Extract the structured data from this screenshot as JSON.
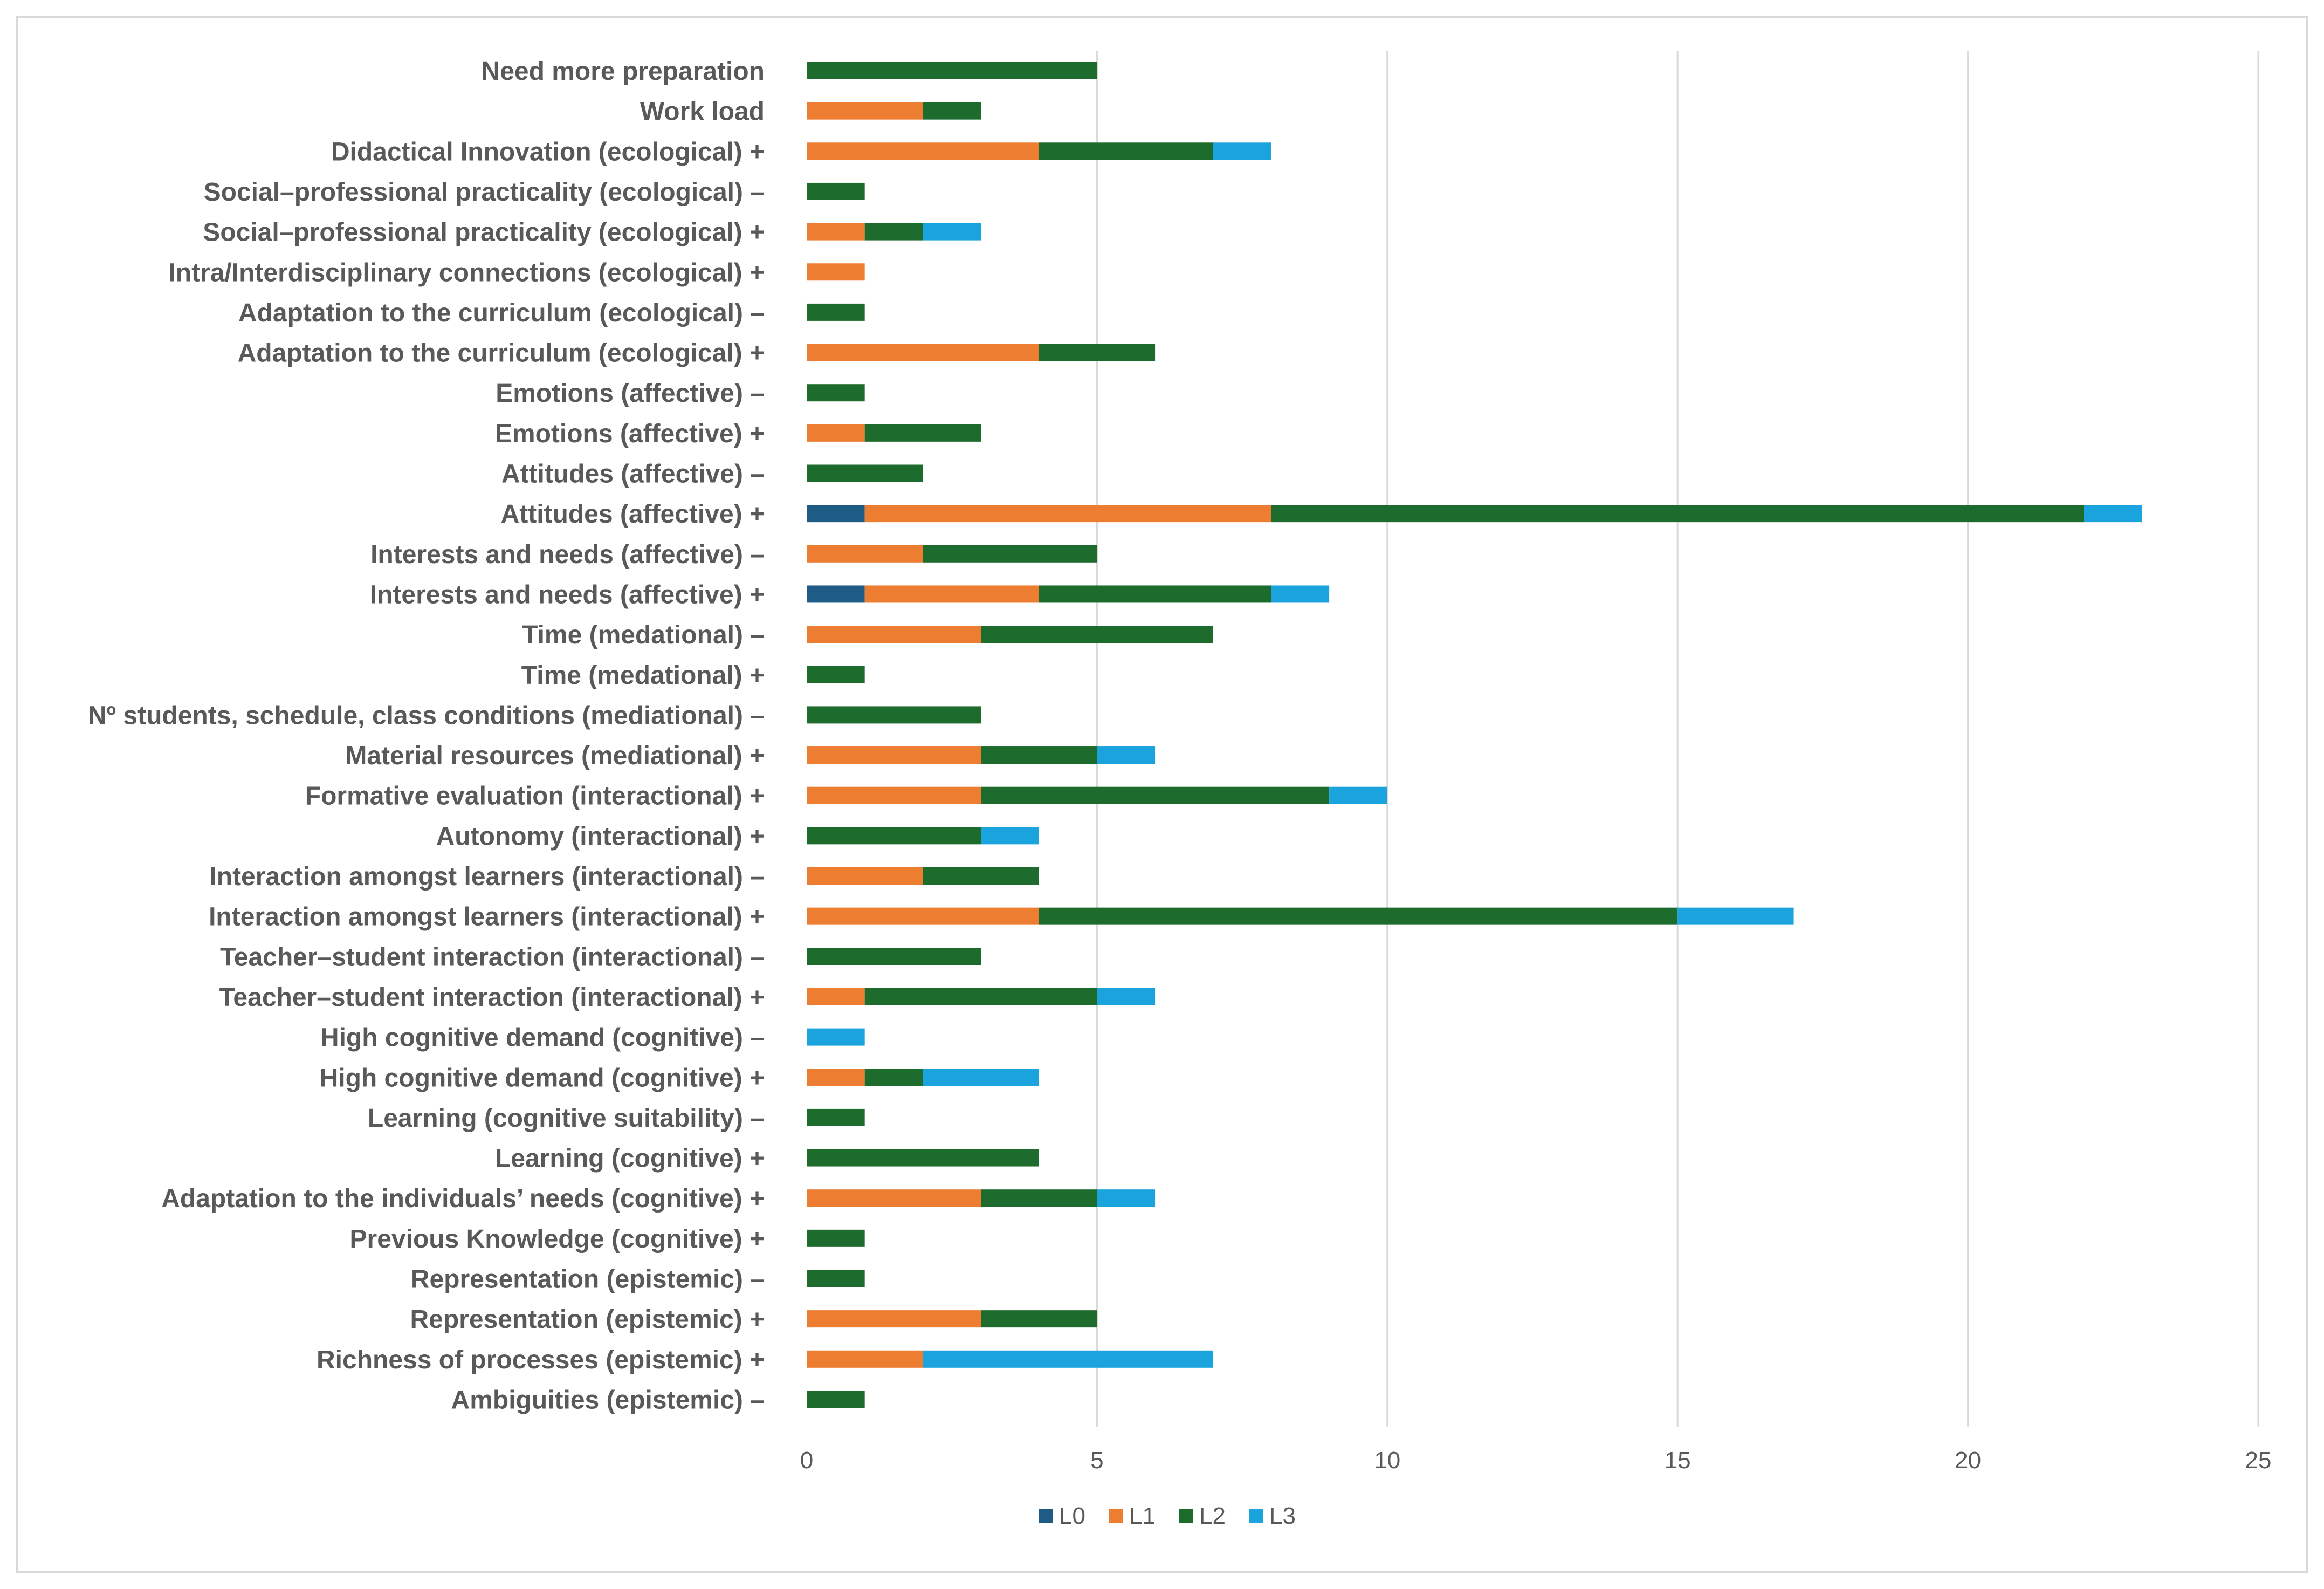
{
  "chart_data": {
    "type": "bar",
    "orientation": "horizontal",
    "stacked": true,
    "title": "",
    "xlabel": "",
    "ylabel": "",
    "xlim": [
      0,
      25
    ],
    "xticks": [
      0,
      5,
      10,
      15,
      20,
      25
    ],
    "grid": true,
    "legend_position": "bottom",
    "categories": [
      "Need more preparation",
      "Work load",
      "Didactical Innovation (ecological) +",
      "Social–professional practicality (ecological) –",
      "Social–professional practicality (ecological) +",
      "Intra/Interdisciplinary connections (ecological) +",
      "Adaptation to the curriculum (ecological) –",
      "Adaptation to the curriculum (ecological) +",
      "Emotions (affective) –",
      "Emotions (affective) +",
      "Attitudes (affective) –",
      "Attitudes (affective) +",
      "Interests and needs (affective) –",
      "Interests and needs (affective) +",
      "Time (medational) –",
      "Time (medational) +",
      "Nº students, schedule, class conditions (mediational) –",
      "Material resources (mediational) +",
      "Formative evaluation (interactional) +",
      "Autonomy (interactional) +",
      "Interaction amongst learners (interactional) –",
      "Interaction amongst learners (interactional) +",
      "Teacher–student interaction (interactional) –",
      "Teacher–student interaction (interactional) +",
      "High cognitive demand (cognitive) –",
      "High cognitive demand (cognitive) +",
      "Learning (cognitive suitability) –",
      "Learning (cognitive) +",
      "Adaptation to the individuals’ needs (cognitive) +",
      "Previous Knowledge (cognitive) +",
      "Representation (epistemic) –",
      "Representation (epistemic) +",
      "Richness of processes (epistemic) +",
      "Ambiguities (epistemic) –"
    ],
    "series": [
      {
        "name": "L0",
        "color": "#1f5c85",
        "values": [
          0,
          0,
          0,
          0,
          0,
          0,
          0,
          0,
          0,
          0,
          0,
          1,
          0,
          1,
          0,
          0,
          0,
          0,
          0,
          0,
          0,
          0,
          0,
          0,
          0,
          0,
          0,
          0,
          0,
          0,
          0,
          0,
          0,
          0
        ]
      },
      {
        "name": "L1",
        "color": "#ed7d31",
        "values": [
          0,
          2,
          4,
          0,
          1,
          1,
          0,
          4,
          0,
          1,
          0,
          7,
          2,
          3,
          3,
          0,
          0,
          3,
          3,
          0,
          2,
          4,
          0,
          1,
          0,
          1,
          0,
          0,
          3,
          0,
          0,
          3,
          2,
          0
        ]
      },
      {
        "name": "L2",
        "color": "#1e6b2e",
        "values": [
          5,
          1,
          3,
          1,
          1,
          0,
          1,
          2,
          1,
          2,
          2,
          14,
          3,
          4,
          4,
          1,
          3,
          2,
          6,
          3,
          2,
          11,
          3,
          4,
          0,
          1,
          1,
          4,
          2,
          1,
          1,
          2,
          0,
          1
        ]
      },
      {
        "name": "L3",
        "color": "#1aa3dc",
        "values": [
          0,
          0,
          1,
          0,
          1,
          0,
          0,
          0,
          0,
          0,
          0,
          1,
          0,
          1,
          0,
          0,
          0,
          1,
          1,
          1,
          0,
          2,
          0,
          1,
          1,
          2,
          0,
          0,
          1,
          0,
          0,
          0,
          5,
          0
        ]
      }
    ]
  }
}
